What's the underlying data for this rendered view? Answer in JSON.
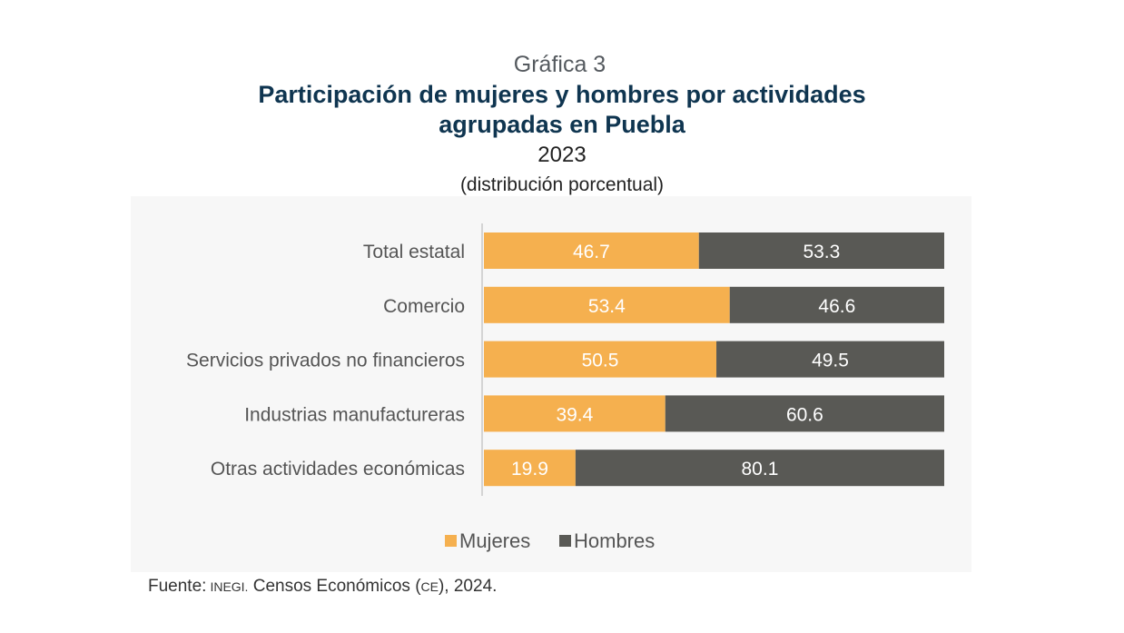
{
  "header": {
    "kicker": "Gráfica 3",
    "title_line1": "Participación de mujeres y hombres por actividades",
    "title_line2": "agrupadas en Puebla",
    "year": "2023",
    "subtitle": "(distribución porcentual)"
  },
  "source": {
    "label": "Fuente:",
    "org": "INEGI.",
    "text1": "Censos Económicos (",
    "abbr": "CE",
    "text2": "), 2024."
  },
  "colors": {
    "mujeres": "#f5b04f",
    "hombres": "#595955",
    "label_text": "#555555",
    "bar_text": "#ffffff",
    "axis": "#c8c8c8"
  },
  "chart_data": {
    "type": "bar",
    "orientation": "horizontal",
    "stacked": true,
    "categories": [
      "Total estatal",
      "Comercio",
      "Servicios privados no financieros",
      "Industrias manufactureras",
      "Otras actividades económicas"
    ],
    "series": [
      {
        "name": "Mujeres",
        "values": [
          46.7,
          53.4,
          50.5,
          39.4,
          19.9
        ]
      },
      {
        "name": "Hombres",
        "values": [
          53.3,
          46.6,
          49.5,
          60.6,
          80.1
        ]
      }
    ],
    "xlim": [
      0,
      100
    ],
    "legend": "bottom-center",
    "grid": false
  }
}
